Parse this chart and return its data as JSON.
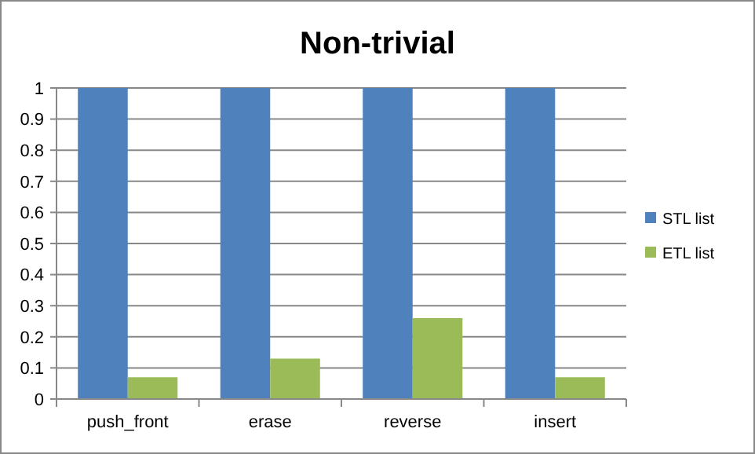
{
  "chart_data": {
    "type": "bar",
    "title": "Non-trivial",
    "categories": [
      "push_front",
      "erase",
      "reverse",
      "insert"
    ],
    "series": [
      {
        "name": "STL list",
        "color": "#4f81bd",
        "values": [
          1,
          1,
          1,
          1
        ]
      },
      {
        "name": "ETL list",
        "color": "#9bbb59",
        "values": [
          0.07,
          0.13,
          0.26,
          0.07
        ]
      }
    ],
    "ylim": [
      0,
      1
    ],
    "yticks": [
      0,
      0.1,
      0.2,
      0.3,
      0.4,
      0.5,
      0.6,
      0.7,
      0.8,
      0.9,
      1
    ],
    "grid": "y",
    "legend": "right"
  }
}
